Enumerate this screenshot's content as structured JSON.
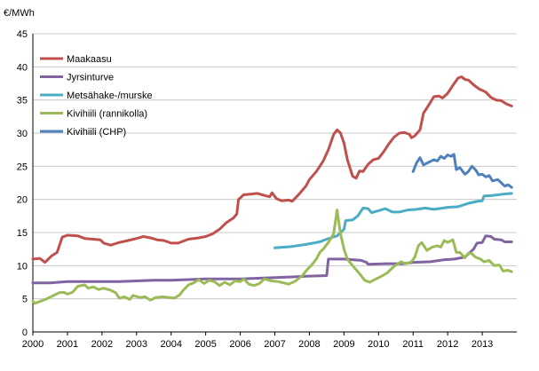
{
  "chart_data": {
    "type": "line",
    "title": "",
    "ylabel": "€/MWh",
    "xlabel": "",
    "ylim": [
      0,
      45
    ],
    "yticks": [
      0,
      5,
      10,
      15,
      20,
      25,
      30,
      35,
      40,
      45
    ],
    "xlim": [
      2000,
      2014
    ],
    "xticks": [
      2000,
      2001,
      2002,
      2003,
      2004,
      2005,
      2006,
      2007,
      2008,
      2009,
      2010,
      2011,
      2012,
      2013
    ],
    "xtick_labels": [
      "2000",
      "2001",
      "2002",
      "2003",
      "2004",
      "2005",
      "2006",
      "2007",
      "2008",
      "2009",
      "2010",
      "2011",
      "2012",
      "2013"
    ],
    "grid": "horizontal",
    "legend_position": "top-left",
    "series": [
      {
        "name": "Maakaasu",
        "color": "#c0504d",
        "points": [
          [
            2000.0,
            11.0
          ],
          [
            2000.2,
            11.1
          ],
          [
            2000.35,
            10.5
          ],
          [
            2000.55,
            11.5
          ],
          [
            2000.7,
            12.0
          ],
          [
            2000.85,
            14.3
          ],
          [
            2001.0,
            14.6
          ],
          [
            2001.3,
            14.5
          ],
          [
            2001.5,
            14.1
          ],
          [
            2001.75,
            14.0
          ],
          [
            2001.95,
            13.9
          ],
          [
            2002.05,
            13.4
          ],
          [
            2002.25,
            13.1
          ],
          [
            2002.5,
            13.5
          ],
          [
            2002.75,
            13.8
          ],
          [
            2003.0,
            14.1
          ],
          [
            2003.2,
            14.4
          ],
          [
            2003.4,
            14.2
          ],
          [
            2003.6,
            13.9
          ],
          [
            2003.8,
            13.8
          ],
          [
            2004.0,
            13.4
          ],
          [
            2004.2,
            13.4
          ],
          [
            2004.5,
            14.0
          ],
          [
            2004.8,
            14.2
          ],
          [
            2005.0,
            14.4
          ],
          [
            2005.2,
            14.8
          ],
          [
            2005.4,
            15.5
          ],
          [
            2005.6,
            16.5
          ],
          [
            2005.8,
            17.2
          ],
          [
            2005.9,
            17.8
          ],
          [
            2005.95,
            20.0
          ],
          [
            2006.1,
            20.7
          ],
          [
            2006.3,
            20.8
          ],
          [
            2006.5,
            20.9
          ],
          [
            2006.7,
            20.6
          ],
          [
            2006.85,
            20.4
          ],
          [
            2006.92,
            21.0
          ],
          [
            2007.05,
            20.1
          ],
          [
            2007.2,
            19.8
          ],
          [
            2007.4,
            19.9
          ],
          [
            2007.5,
            19.7
          ],
          [
            2007.7,
            20.8
          ],
          [
            2007.9,
            22.0
          ],
          [
            2008.0,
            23.0
          ],
          [
            2008.2,
            24.2
          ],
          [
            2008.4,
            25.8
          ],
          [
            2008.55,
            27.5
          ],
          [
            2008.7,
            29.8
          ],
          [
            2008.8,
            30.5
          ],
          [
            2008.9,
            30.0
          ],
          [
            2009.0,
            28.5
          ],
          [
            2009.1,
            26.0
          ],
          [
            2009.25,
            23.5
          ],
          [
            2009.35,
            23.2
          ],
          [
            2009.45,
            24.3
          ],
          [
            2009.55,
            24.2
          ],
          [
            2009.7,
            25.3
          ],
          [
            2009.85,
            26.0
          ],
          [
            2010.0,
            26.2
          ],
          [
            2010.15,
            27.2
          ],
          [
            2010.3,
            28.4
          ],
          [
            2010.45,
            29.4
          ],
          [
            2010.6,
            30.0
          ],
          [
            2010.75,
            30.1
          ],
          [
            2010.9,
            29.8
          ],
          [
            2010.95,
            29.3
          ],
          [
            2011.05,
            29.6
          ],
          [
            2011.2,
            30.5
          ],
          [
            2011.3,
            33.0
          ],
          [
            2011.45,
            34.2
          ],
          [
            2011.6,
            35.5
          ],
          [
            2011.75,
            35.6
          ],
          [
            2011.85,
            35.3
          ],
          [
            2012.0,
            36.0
          ],
          [
            2012.15,
            37.2
          ],
          [
            2012.3,
            38.3
          ],
          [
            2012.4,
            38.5
          ],
          [
            2012.5,
            38.1
          ],
          [
            2012.6,
            38.0
          ],
          [
            2012.75,
            37.3
          ],
          [
            2012.9,
            36.7
          ],
          [
            2013.1,
            36.2
          ],
          [
            2013.25,
            35.4
          ],
          [
            2013.4,
            35.0
          ],
          [
            2013.55,
            34.9
          ],
          [
            2013.7,
            34.4
          ],
          [
            2013.85,
            34.1
          ]
        ]
      },
      {
        "name": "Jyrsinturve",
        "color": "#8064a2",
        "points": [
          [
            2000.0,
            7.4
          ],
          [
            2000.5,
            7.4
          ],
          [
            2001.0,
            7.6
          ],
          [
            2001.5,
            7.6
          ],
          [
            2002.0,
            7.6
          ],
          [
            2002.5,
            7.6
          ],
          [
            2003.0,
            7.7
          ],
          [
            2003.5,
            7.8
          ],
          [
            2004.0,
            7.8
          ],
          [
            2004.5,
            7.9
          ],
          [
            2005.0,
            8.0
          ],
          [
            2005.5,
            8.0
          ],
          [
            2006.0,
            8.0
          ],
          [
            2006.5,
            8.1
          ],
          [
            2007.0,
            8.2
          ],
          [
            2007.5,
            8.3
          ],
          [
            2007.9,
            8.4
          ],
          [
            2008.5,
            8.5
          ],
          [
            2008.55,
            11.0
          ],
          [
            2009.0,
            11.0
          ],
          [
            2009.5,
            10.8
          ],
          [
            2009.65,
            10.5
          ],
          [
            2009.7,
            10.2
          ],
          [
            2010.2,
            10.3
          ],
          [
            2010.7,
            10.3
          ],
          [
            2011.0,
            10.5
          ],
          [
            2011.5,
            10.6
          ],
          [
            2011.9,
            10.9
          ],
          [
            2012.2,
            11.0
          ],
          [
            2012.5,
            11.3
          ],
          [
            2012.75,
            12.5
          ],
          [
            2012.85,
            13.4
          ],
          [
            2013.0,
            13.5
          ],
          [
            2013.1,
            14.5
          ],
          [
            2013.25,
            14.4
          ],
          [
            2013.35,
            14.0
          ],
          [
            2013.55,
            13.9
          ],
          [
            2013.65,
            13.6
          ],
          [
            2013.85,
            13.6
          ]
        ]
      },
      {
        "name": "Metsähake-/murske",
        "color": "#4bacc6",
        "points": [
          [
            2007.0,
            12.7
          ],
          [
            2007.5,
            12.9
          ],
          [
            2007.9,
            13.2
          ],
          [
            2008.3,
            13.6
          ],
          [
            2008.5,
            14.0
          ],
          [
            2008.8,
            14.5
          ],
          [
            2009.0,
            15.5
          ],
          [
            2009.05,
            16.8
          ],
          [
            2009.25,
            16.9
          ],
          [
            2009.4,
            17.5
          ],
          [
            2009.55,
            18.7
          ],
          [
            2009.7,
            18.6
          ],
          [
            2009.8,
            18.0
          ],
          [
            2010.0,
            18.3
          ],
          [
            2010.2,
            18.6
          ],
          [
            2010.4,
            18.1
          ],
          [
            2010.6,
            18.1
          ],
          [
            2010.85,
            18.4
          ],
          [
            2011.1,
            18.5
          ],
          [
            2011.35,
            18.7
          ],
          [
            2011.6,
            18.5
          ],
          [
            2012.0,
            18.8
          ],
          [
            2012.3,
            18.9
          ],
          [
            2012.6,
            19.4
          ],
          [
            2012.85,
            19.7
          ],
          [
            2013.0,
            19.8
          ],
          [
            2013.05,
            20.5
          ],
          [
            2013.3,
            20.6
          ],
          [
            2013.6,
            20.8
          ],
          [
            2013.85,
            20.9
          ]
        ]
      },
      {
        "name": "Kivihiili (rannikolla)",
        "color": "#9bbb59",
        "points": [
          [
            2000.0,
            4.7
          ],
          [
            2000.05,
            4.3
          ],
          [
            2000.2,
            4.6
          ],
          [
            2000.4,
            5.0
          ],
          [
            2000.6,
            5.5
          ],
          [
            2000.75,
            5.9
          ],
          [
            2000.9,
            6.0
          ],
          [
            2001.0,
            5.7
          ],
          [
            2001.15,
            6.0
          ],
          [
            2001.3,
            6.9
          ],
          [
            2001.5,
            7.1
          ],
          [
            2001.6,
            6.6
          ],
          [
            2001.75,
            6.8
          ],
          [
            2001.9,
            6.4
          ],
          [
            2002.05,
            6.6
          ],
          [
            2002.25,
            6.3
          ],
          [
            2002.4,
            5.9
          ],
          [
            2002.5,
            5.1
          ],
          [
            2002.65,
            5.3
          ],
          [
            2002.8,
            4.9
          ],
          [
            2002.9,
            5.5
          ],
          [
            2003.1,
            5.2
          ],
          [
            2003.25,
            5.3
          ],
          [
            2003.4,
            4.8
          ],
          [
            2003.55,
            5.2
          ],
          [
            2003.75,
            5.3
          ],
          [
            2003.95,
            5.2
          ],
          [
            2004.1,
            5.1
          ],
          [
            2004.25,
            5.6
          ],
          [
            2004.35,
            6.3
          ],
          [
            2004.5,
            7.1
          ],
          [
            2004.65,
            7.4
          ],
          [
            2004.8,
            7.9
          ],
          [
            2004.95,
            7.3
          ],
          [
            2005.1,
            7.8
          ],
          [
            2005.25,
            7.6
          ],
          [
            2005.4,
            7.0
          ],
          [
            2005.55,
            7.5
          ],
          [
            2005.7,
            7.1
          ],
          [
            2005.85,
            7.7
          ],
          [
            2006.0,
            7.6
          ],
          [
            2006.1,
            8.0
          ],
          [
            2006.25,
            7.2
          ],
          [
            2006.4,
            7.0
          ],
          [
            2006.55,
            7.3
          ],
          [
            2006.7,
            8.0
          ],
          [
            2006.9,
            7.7
          ],
          [
            2007.1,
            7.6
          ],
          [
            2007.25,
            7.4
          ],
          [
            2007.4,
            7.2
          ],
          [
            2007.6,
            7.7
          ],
          [
            2007.8,
            8.5
          ],
          [
            2007.95,
            9.5
          ],
          [
            2008.05,
            10.0
          ],
          [
            2008.2,
            11.0
          ],
          [
            2008.3,
            12.0
          ],
          [
            2008.4,
            12.5
          ],
          [
            2008.55,
            13.5
          ],
          [
            2008.7,
            14.8
          ],
          [
            2008.8,
            18.4
          ],
          [
            2008.9,
            14.8
          ],
          [
            2009.0,
            12.5
          ],
          [
            2009.1,
            11.0
          ],
          [
            2009.25,
            10.0
          ],
          [
            2009.45,
            8.8
          ],
          [
            2009.6,
            7.8
          ],
          [
            2009.75,
            7.5
          ],
          [
            2009.85,
            7.8
          ],
          [
            2010.05,
            8.3
          ],
          [
            2010.25,
            8.9
          ],
          [
            2010.45,
            9.9
          ],
          [
            2010.65,
            10.6
          ],
          [
            2010.8,
            10.3
          ],
          [
            2010.95,
            10.6
          ],
          [
            2011.05,
            11.3
          ],
          [
            2011.15,
            13.0
          ],
          [
            2011.25,
            13.5
          ],
          [
            2011.4,
            12.3
          ],
          [
            2011.55,
            12.8
          ],
          [
            2011.7,
            13.0
          ],
          [
            2011.8,
            12.8
          ],
          [
            2011.9,
            13.8
          ],
          [
            2012.0,
            13.5
          ],
          [
            2012.15,
            13.9
          ],
          [
            2012.25,
            12.0
          ],
          [
            2012.35,
            12.0
          ],
          [
            2012.5,
            11.2
          ],
          [
            2012.6,
            11.9
          ],
          [
            2012.7,
            11.8
          ],
          [
            2012.8,
            11.3
          ],
          [
            2012.95,
            11.0
          ],
          [
            2013.05,
            10.6
          ],
          [
            2013.2,
            10.8
          ],
          [
            2013.35,
            10.0
          ],
          [
            2013.5,
            10.1
          ],
          [
            2013.6,
            9.2
          ],
          [
            2013.75,
            9.3
          ],
          [
            2013.85,
            9.1
          ]
        ]
      },
      {
        "name": "Kivihiili (CHP)",
        "color": "#4f81bd",
        "points": [
          [
            2011.0,
            24.2
          ],
          [
            2011.1,
            25.5
          ],
          [
            2011.2,
            26.3
          ],
          [
            2011.3,
            25.2
          ],
          [
            2011.45,
            25.6
          ],
          [
            2011.6,
            26.0
          ],
          [
            2011.7,
            25.8
          ],
          [
            2011.8,
            26.5
          ],
          [
            2011.9,
            26.2
          ],
          [
            2012.0,
            26.7
          ],
          [
            2012.1,
            26.5
          ],
          [
            2012.18,
            26.8
          ],
          [
            2012.25,
            24.5
          ],
          [
            2012.35,
            24.8
          ],
          [
            2012.5,
            23.8
          ],
          [
            2012.6,
            24.2
          ],
          [
            2012.7,
            25.0
          ],
          [
            2012.8,
            24.5
          ],
          [
            2012.9,
            23.7
          ],
          [
            2013.0,
            23.8
          ],
          [
            2013.1,
            23.4
          ],
          [
            2013.2,
            23.6
          ],
          [
            2013.3,
            22.8
          ],
          [
            2013.45,
            23.0
          ],
          [
            2013.55,
            22.5
          ],
          [
            2013.65,
            22.0
          ],
          [
            2013.75,
            22.2
          ],
          [
            2013.85,
            21.8
          ]
        ]
      }
    ]
  }
}
